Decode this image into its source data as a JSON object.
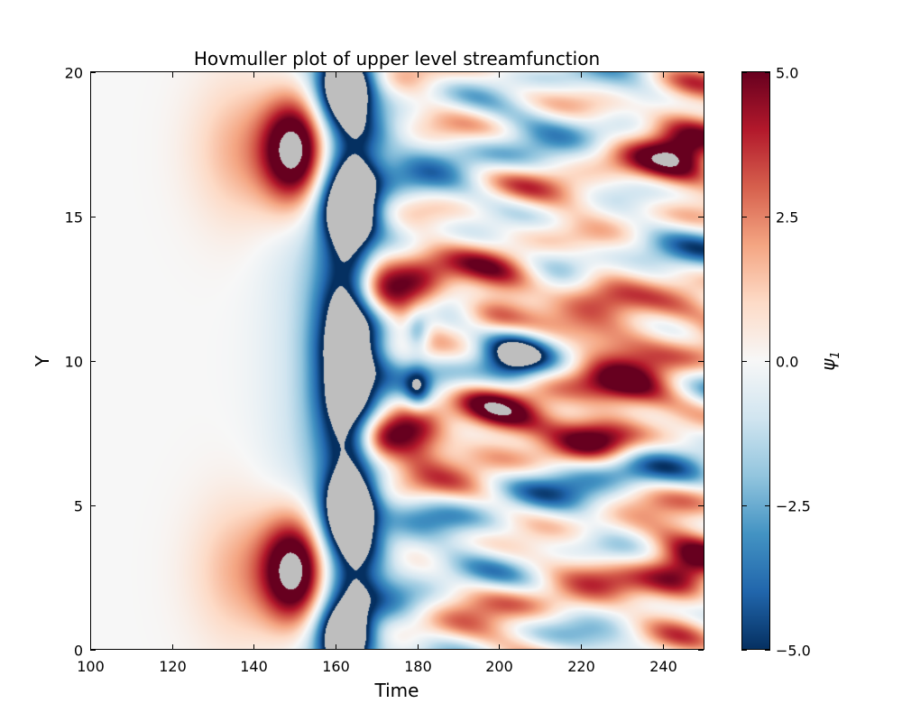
{
  "chart_data": {
    "type": "heatmap",
    "title": "Hovmuller plot of upper level streamfunction",
    "xlabel": "Time",
    "ylabel": "Y",
    "xlim": [
      100,
      250
    ],
    "ylim": [
      0,
      20
    ],
    "xticks": [
      100,
      120,
      140,
      160,
      180,
      200,
      220,
      240
    ],
    "xtick_labels": [
      "100",
      "120",
      "140",
      "160",
      "180",
      "200",
      "220",
      "240"
    ],
    "yticks": [
      0,
      5,
      10,
      15,
      20
    ],
    "ytick_labels": [
      "0",
      "5",
      "10",
      "15",
      "20"
    ],
    "colorbar": {
      "label": "ψ1",
      "label_main": "ψ",
      "label_sub": "1",
      "range": [
        -5.0,
        5.0
      ],
      "ticks": [
        5.0,
        2.5,
        0.0,
        -2.5,
        -5.0
      ],
      "tick_labels": [
        "5.0",
        "2.5",
        "0.0",
        "−2.5",
        "−5.0"
      ],
      "colormap": "RdBu_r"
    },
    "out_of_range_color": "#bebebe",
    "field_description": "Streamfunction is ~0 until t≈130; blue band (negative) appears along t≈150–170 at all Y; red blobs near Y≈3 and Y≈17 at t≈150; large out-of-range region around Y≈7–13, t≈155–175; afterwards a chaotic pattern of alternating red/blue horizontal streaks",
    "features": [
      {
        "kind": "positive-blob",
        "t": 150,
        "y": 17.3,
        "value": 5.0
      },
      {
        "kind": "positive-blob",
        "t": 150,
        "y": 2.7,
        "value": 5.0
      },
      {
        "kind": "out-of-range",
        "t": 163,
        "y": 10,
        "value": -6.0
      },
      {
        "kind": "out-of-range",
        "t": 162,
        "y": 19.5,
        "value": -6.0
      },
      {
        "kind": "out-of-range",
        "t": 162,
        "y": 0.5,
        "value": -6.0
      },
      {
        "kind": "negative-center",
        "t": 203,
        "y": 10,
        "value": -5.0
      },
      {
        "kind": "positive-streak",
        "t": 225,
        "y": 12.5,
        "value": 4.5
      },
      {
        "kind": "positive-streak",
        "t": 225,
        "y": 7.5,
        "value": 4.5
      }
    ]
  }
}
